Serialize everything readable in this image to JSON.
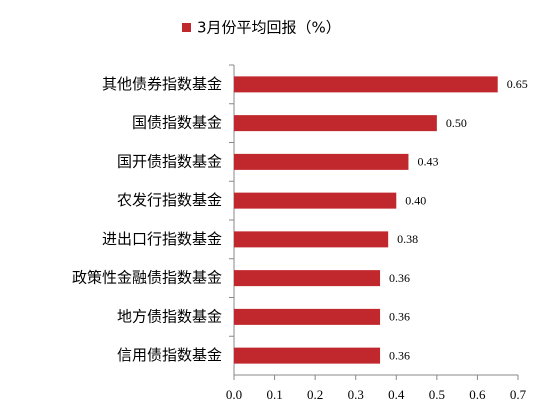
{
  "chart_data": {
    "type": "barh",
    "legend": "3月份平均回报（%）",
    "categories": [
      "其他债券指数基金",
      "国债指数基金",
      "国开债指数基金",
      "农发行指数基金",
      "进出口行指数基金",
      "政策性金融债指数基金",
      "地方债指数基金",
      "信用债指数基金"
    ],
    "series": [
      {
        "name": "3月份平均回报（%）",
        "color": "#c0282d",
        "values": [
          0.65,
          0.5,
          0.43,
          0.4,
          0.38,
          0.36,
          0.36,
          0.36
        ],
        "value_labels": [
          "0.65",
          "0.50",
          "0.43",
          "0.40",
          "0.38",
          "0.36",
          "0.36",
          "0.36"
        ]
      }
    ],
    "xlim": [
      0,
      0.7
    ],
    "xticks": [
      {
        "value": 0,
        "label": "0.0"
      },
      0.1,
      0.2,
      0.3,
      0.4,
      0.5,
      0.6,
      0.7
    ],
    "legend_position": "top"
  }
}
